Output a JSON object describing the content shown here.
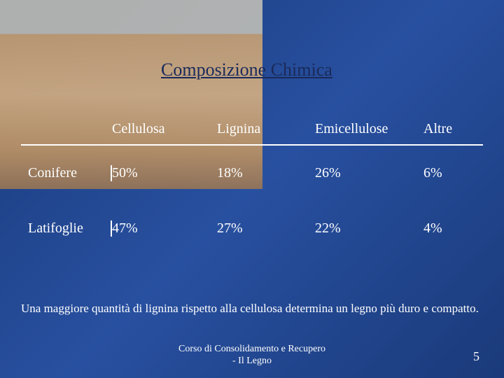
{
  "title": "Composizione Chimica",
  "table": {
    "columns": [
      "Cellulosa",
      "Lignina",
      "Emicellulose",
      "Altre"
    ],
    "rows": [
      {
        "category": "Conifere",
        "cells": [
          "50%",
          "18%",
          "26%",
          "6%"
        ]
      },
      {
        "category": "Latifoglie",
        "cells": [
          "47%",
          "27%",
          "22%",
          "4%"
        ]
      }
    ]
  },
  "body_text": "Una maggiore quantità di lignina rispetto alla cellulosa determina un legno più duro e compatto.",
  "footer_line1": "Corso di Consolidamento e Recupero",
  "footer_line2": "- Il Legno",
  "page_number": "5"
}
